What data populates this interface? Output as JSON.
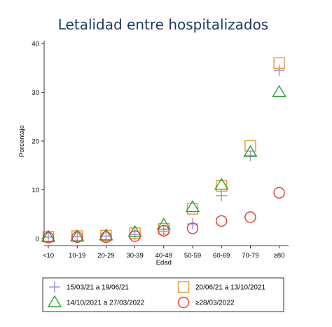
{
  "chart_data": {
    "type": "scatter",
    "title": "Letalidad entre hospitalizados",
    "xlabel": "Edad",
    "ylabel": "Porcentaje",
    "ylim": [
      0,
      40
    ],
    "yticks": [
      0,
      10,
      20,
      30,
      40
    ],
    "categories": [
      "<10",
      "10-19",
      "20-29",
      "30-39",
      "40-49",
      "50-59",
      "60-69",
      "70-79",
      "≥80"
    ],
    "grid": false,
    "legend_position": "bottom",
    "series": [
      {
        "name": "15/03/21 a 19/06/21",
        "marker": "plus",
        "color": "#9b8fd4",
        "values": [
          0.3,
          0.4,
          0.5,
          0.8,
          1.5,
          3.0,
          8.8,
          17.0,
          34.5
        ]
      },
      {
        "name": "20/06/21 a 13/10/2021",
        "marker": "square",
        "color": "#e39a3a",
        "values": [
          0.4,
          0.5,
          0.6,
          1.1,
          2.0,
          6.1,
          10.8,
          19.0,
          36.0
        ]
      },
      {
        "name": "14/10/2021 a 27/03/2022",
        "marker": "triangle",
        "color": "#2e9e3b",
        "values": [
          0.3,
          0.4,
          0.6,
          1.3,
          2.8,
          6.4,
          11.0,
          17.7,
          30.0
        ]
      },
      {
        "name": "≥28/03/2022",
        "marker": "circle",
        "color": "#e03a3a",
        "values": [
          0.2,
          0.3,
          0.3,
          0.5,
          1.6,
          2.1,
          3.6,
          4.4,
          9.4
        ]
      }
    ]
  }
}
